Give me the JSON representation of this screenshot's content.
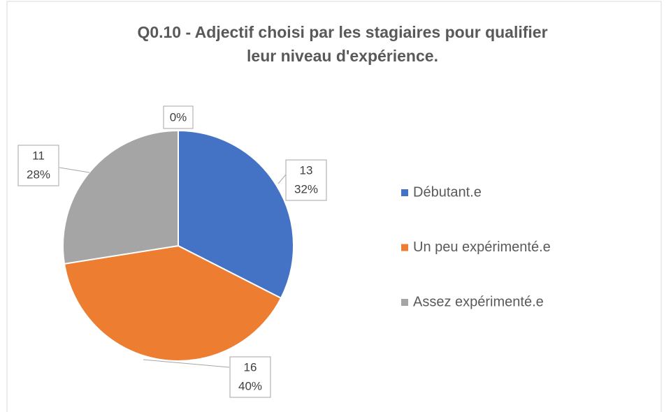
{
  "chart_data": {
    "type": "pie",
    "title": [
      "Q0.10 - Adjectif choisi par les stagiaires pour qualifier",
      "leur niveau d'expérience."
    ],
    "categories": [
      "Débutant.e",
      "Un peu expérimenté.e",
      "Assez expérimenté.e",
      null
    ],
    "values": [
      13,
      16,
      11,
      0
    ],
    "percent_labels": [
      "32%",
      "40%",
      "28%",
      "0%"
    ],
    "colors": [
      "#4472c4",
      "#ed7d31",
      "#a5a5a5",
      "#ffc000"
    ],
    "legend": "right"
  }
}
